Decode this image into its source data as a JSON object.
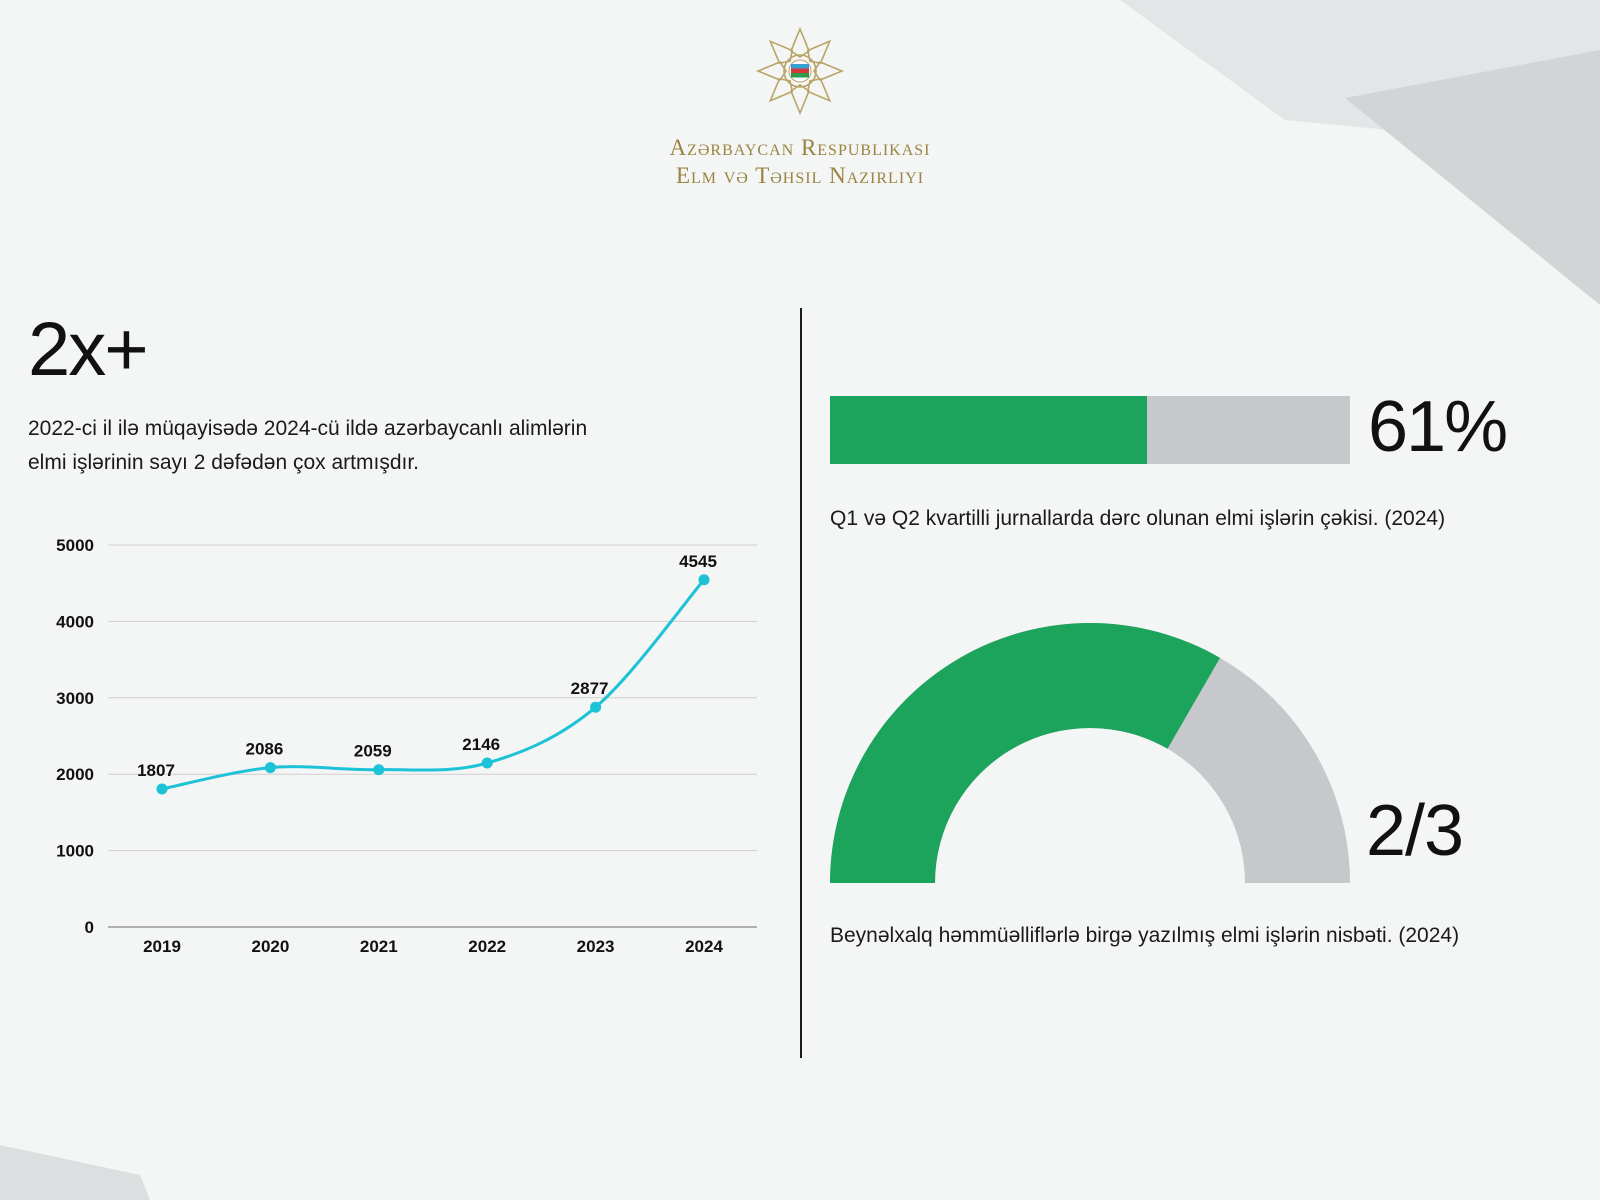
{
  "header": {
    "ministry_line1": "Azərbaycan Respublikası",
    "ministry_line2": "Elm və Təhsil Nazirliyi"
  },
  "left": {
    "big_stat": "2x+",
    "description_line1": "2022-ci il ilə müqayisədə 2024-cü ildə azərbaycanlı alimlərin",
    "description_line2": "elmi işlərinin sayı 2 dəfədən çox artmışdır."
  },
  "right": {
    "progress_value": 0.61,
    "progress_label": "61%",
    "progress_caption": "Q1 və Q2 kvartilli jurnallarda dərc olunan elmi işlərin çəkisi. (2024)",
    "gauge_value": 0.6667,
    "gauge_label": "2/3",
    "gauge_caption": "Beynəlxalq həmmüəlliflərlə birgə yazılmış elmi işlərin nisbəti.  (2024)"
  },
  "colors": {
    "accent_green": "#1ca35c",
    "track_gray": "#c6c8cb",
    "line_color": "#1cc2d6",
    "gold": "#9a8440"
  },
  "icons": {
    "emblem": "ministry-emblem-icon"
  },
  "chart_data": {
    "type": "line",
    "categories": [
      "2019",
      "2020",
      "2021",
      "2022",
      "2023",
      "2024"
    ],
    "values": [
      1807,
      2086,
      2059,
      2146,
      2877,
      4545
    ],
    "data_labels": [
      "1807",
      "2086",
      "2059",
      "2146",
      "2877",
      "4545"
    ],
    "y_ticks": [
      "0",
      "1000",
      "2000",
      "3000",
      "4000",
      "5000"
    ],
    "ylim": [
      0,
      5000
    ],
    "grid": true
  }
}
